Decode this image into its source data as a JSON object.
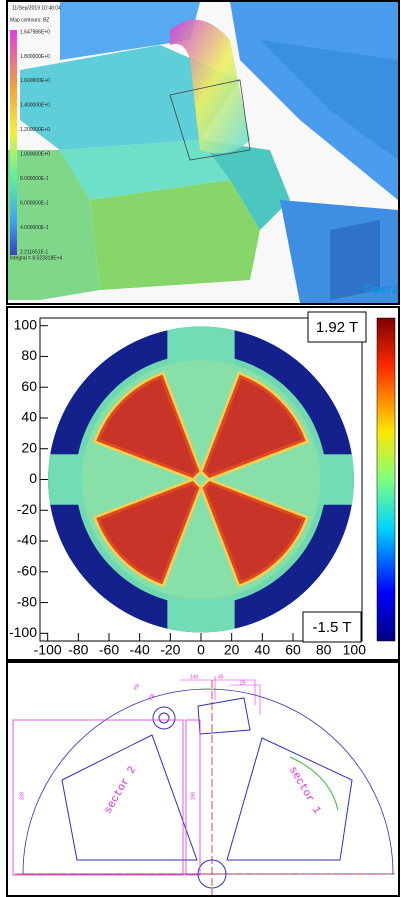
{
  "render_panel": {
    "timestamp": "11/Sep/2019 10:48:04",
    "map_title": "Map contours: BZ",
    "legend_labels": [
      "1.647986E+0",
      "1.800000E+0",
      "1.600000E+0",
      "1.400000E+0",
      "1.200000E+0",
      "1.000000E+0",
      "8.000000E-1",
      "6.000000E-1",
      "4.000000E-1",
      "2.211651E-1"
    ],
    "integral": "Integral = 8.523318E+4",
    "logo": "Opera"
  },
  "chart_data": {
    "type": "heatmap",
    "xlim": [
      -105,
      105
    ],
    "ylim": [
      -105,
      105
    ],
    "xticks": [
      -100,
      -80,
      -60,
      -40,
      -20,
      0,
      20,
      40,
      60,
      80,
      100
    ],
    "yticks": [
      -100,
      -80,
      -60,
      -40,
      -20,
      0,
      20,
      40,
      60,
      80,
      100
    ],
    "max_label": "1.92 T",
    "min_label": "-1.5 T"
  },
  "drawing_panel": {
    "sector_labels": [
      "sector 2",
      "sector 1"
    ],
    "dimensions": [
      "140",
      "45",
      "25",
      "R8",
      "R8",
      "330",
      "190"
    ]
  }
}
